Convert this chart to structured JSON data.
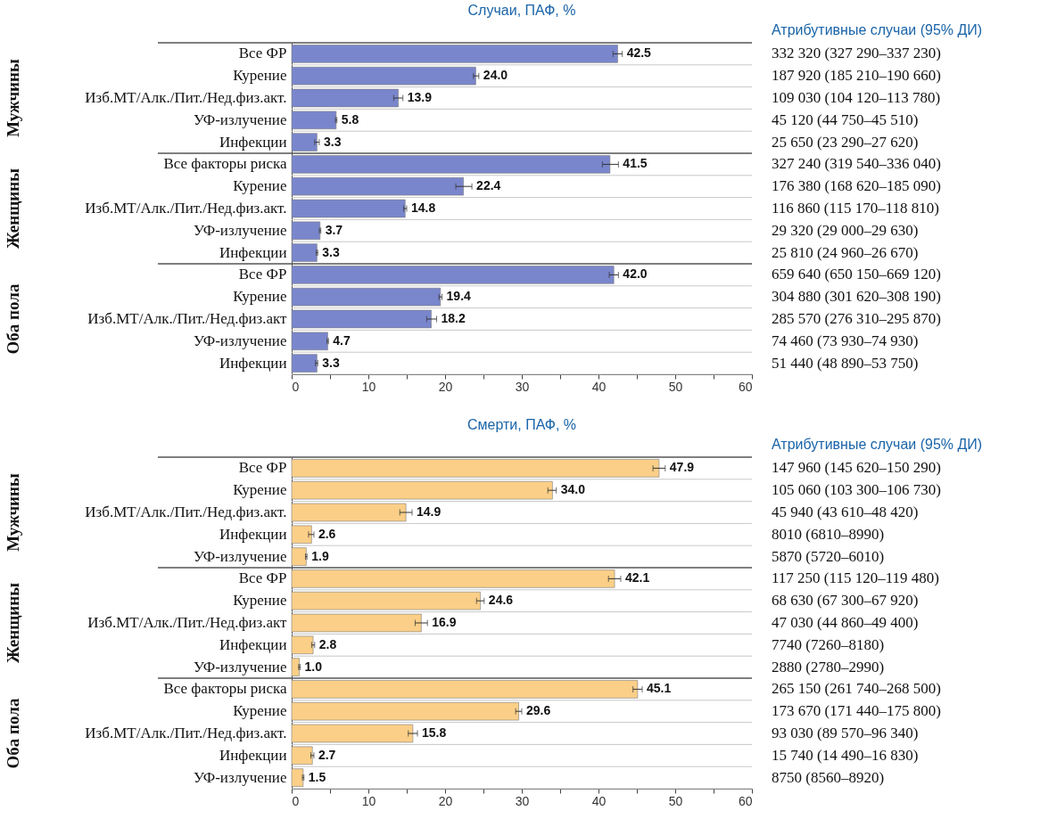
{
  "chart_data": [
    {
      "type": "bar",
      "orientation": "horizontal",
      "title": "Случаи, ПАФ, %",
      "y2label": "Атрибутивные случаи (95% ДИ)",
      "categories": [
        "Все ФР",
        "Курение",
        "Изб.МТ/Алк./Пит./Нед.физ.акт.",
        "УФ-излучение",
        "Инфекции",
        "Все факторы риска",
        "Курение",
        "Изб.МТ/Алк./Пит./Нед.физ.акт.",
        "УФ-излучение",
        "Инфекции",
        "Все ФР",
        "Курение",
        "Изб.МТ/Алк./Пит./Нед.физ.акт",
        "УФ-излучение",
        "Инфекции"
      ],
      "values": [
        42.5,
        24.0,
        13.9,
        5.8,
        3.3,
        41.5,
        22.4,
        14.8,
        3.7,
        3.3,
        42.0,
        19.4,
        18.2,
        4.7,
        3.3
      ],
      "errors": [
        [
          41.9,
          43.1
        ],
        [
          23.7,
          24.4
        ],
        [
          13.3,
          14.5
        ],
        [
          5.7,
          5.9
        ],
        [
          3.0,
          3.6
        ],
        [
          40.5,
          42.6
        ],
        [
          21.4,
          23.5
        ],
        [
          14.6,
          15.0
        ],
        [
          3.6,
          3.8
        ],
        [
          3.2,
          3.4
        ],
        [
          41.4,
          42.6
        ],
        [
          19.2,
          19.6
        ],
        [
          17.6,
          18.9
        ],
        [
          4.6,
          4.8
        ],
        [
          3.1,
          3.4
        ]
      ],
      "color": "#7a86cc",
      "value_labels": [
        "42.5",
        "24.0",
        "13.9",
        "5.8",
        "3.3",
        "41.5",
        "22.4",
        "14.8",
        "3.7",
        "3.3",
        "42.0",
        "19.4",
        "18.2",
        "4.7",
        "3.3"
      ],
      "xlim": [
        0,
        60
      ],
      "xticks": [
        0,
        {
          "value": 5,
          "label": null
        },
        10,
        {
          "value": 15,
          "label": null
        },
        20,
        {
          "value": 25,
          "label": null
        },
        30,
        {
          "value": 35,
          "label": null
        },
        40,
        {
          "value": 45,
          "label": null
        },
        50,
        {
          "value": 55,
          "label": null
        },
        60
      ],
      "annotations": [
        "Мужчины",
        "Женщины",
        "Оба пола",
        "332 320 (327 290–337 230)",
        "187 920 (185 210–190 660)",
        "109 030 (104 120–113 780)",
        "45 120 (44 750–45 510)",
        "25 650 (23 290–27 620)",
        "327 240 (319 540–336 040)",
        "176 380 (168 620–185 090)",
        "116 860 (115 170–118 810)",
        "29 320 (29 000–29 630)",
        "25 810 (24 960–26 670)",
        "659 640 (650 150–669 120)",
        "304 880 (301 620–308 190)",
        "285 570 (276 310–295 870)",
        "74 460 (73 930–74 930)",
        "51 440 (48 890–53 750)"
      ]
    },
    {
      "type": "bar",
      "orientation": "horizontal",
      "title": "Смерти, ПАФ, %",
      "y2label": "Атрибутивные случаи (95% ДИ)",
      "categories": [
        "Все ФР",
        "Курение",
        "Изб.МТ/Алк./Пит./Нед.физ.акт.",
        "Инфекции",
        "УФ-излучение",
        "Все ФР",
        "Курение",
        "Изб.МТ/Алк./Пит./Нед.физ.акт",
        "Инфекции",
        "УФ-излучение",
        "Все факторы риска",
        "Курение",
        "Изб.МТ/Алк./Пит./Нед.физ.акт.",
        "Инфекции",
        "УФ-излучение"
      ],
      "values": [
        47.9,
        34.0,
        14.9,
        2.6,
        1.9,
        42.1,
        24.6,
        16.9,
        2.8,
        1.0,
        45.1,
        29.6,
        15.8,
        2.7,
        1.5
      ],
      "errors": [
        [
          47.1,
          48.7
        ],
        [
          33.4,
          34.5
        ],
        [
          14.1,
          15.7
        ],
        [
          2.2,
          2.9
        ],
        [
          1.8,
          2.0
        ],
        [
          41.3,
          42.9
        ],
        [
          24.1,
          25.1
        ],
        [
          16.1,
          17.7
        ],
        [
          2.6,
          3.0
        ],
        [
          0.9,
          1.1
        ],
        [
          44.5,
          45.7
        ],
        [
          29.2,
          30.0
        ],
        [
          15.2,
          16.4
        ],
        [
          2.5,
          2.9
        ],
        [
          1.4,
          1.6
        ]
      ],
      "color": "#fbcf88",
      "value_labels": [
        "47.9",
        "34.0",
        "14.9",
        "2.6",
        "1.9",
        "42.1",
        "24.6",
        "16.9",
        "2.8",
        "1.0",
        "45.1",
        "29.6",
        "15.8",
        "2.7",
        "1.5"
      ],
      "xlim": [
        0,
        60
      ],
      "xticks": [
        0,
        {
          "value": 5,
          "label": null
        },
        10,
        {
          "value": 15,
          "label": null
        },
        20,
        {
          "value": 25,
          "label": null
        },
        30,
        {
          "value": 35,
          "label": null
        },
        40,
        {
          "value": 45,
          "label": null
        },
        50,
        {
          "value": 55,
          "label": null
        },
        60
      ],
      "annotations": [
        "Мужчины",
        "Женщины",
        "Оба пола",
        "147 960 (145 620–150 290)",
        "105 060 (103 300–106 730)",
        "45 940 (43 610–48 420)",
        "8010 (6810–8990)",
        "5870 (5720–6010)",
        "117 250 (115 120–119 480)",
        "68 630 (67 300–67 920)",
        "47 030 (44 860–49 400)",
        "7740 (7260–8180)",
        "2880 (2780–2990)",
        "265 150 (261 740–268 500)",
        "173 670 (171 440–175 800)",
        "93 030 (89 570–96 340)",
        "15 740 (14 490–16 830)",
        "8750 (8560–8920)"
      ]
    }
  ]
}
